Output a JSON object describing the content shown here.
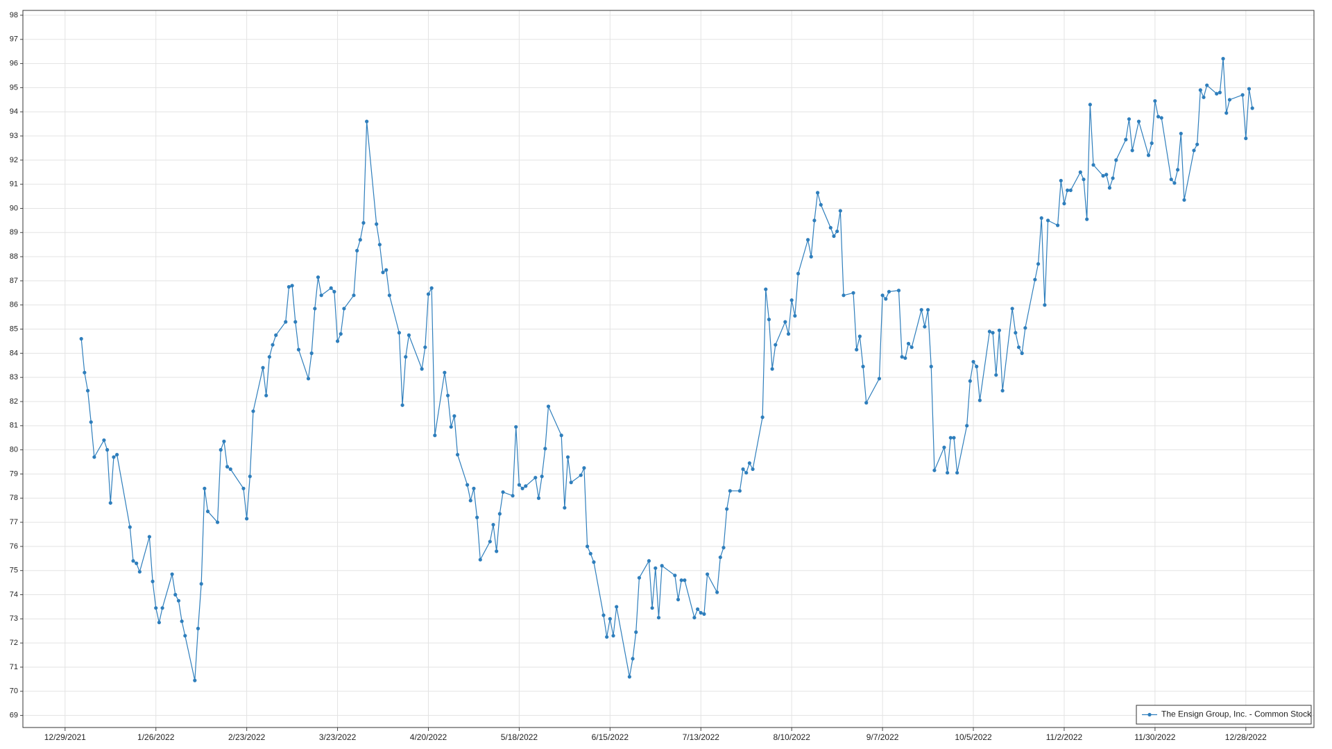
{
  "chart_data": {
    "type": "line",
    "x": [
      "1/3/2022",
      "1/4/2022",
      "1/5/2022",
      "1/6/2022",
      "1/7/2022",
      "1/10/2022",
      "1/11/2022",
      "1/12/2022",
      "1/13/2022",
      "1/14/2022",
      "1/18/2022",
      "1/19/2022",
      "1/20/2022",
      "1/21/2022",
      "1/24/2022",
      "1/25/2022",
      "1/26/2022",
      "1/27/2022",
      "1/28/2022",
      "1/31/2022",
      "2/1/2022",
      "2/2/2022",
      "2/3/2022",
      "2/4/2022",
      "2/7/2022",
      "2/8/2022",
      "2/9/2022",
      "2/10/2022",
      "2/11/2022",
      "2/14/2022",
      "2/15/2022",
      "2/16/2022",
      "2/17/2022",
      "2/18/2022",
      "2/22/2022",
      "2/23/2022",
      "2/24/2022",
      "2/25/2022",
      "2/28/2022",
      "3/1/2022",
      "3/2/2022",
      "3/3/2022",
      "3/4/2022",
      "3/7/2022",
      "3/8/2022",
      "3/9/2022",
      "3/10/2022",
      "3/11/2022",
      "3/14/2022",
      "3/15/2022",
      "3/16/2022",
      "3/17/2022",
      "3/18/2022",
      "3/21/2022",
      "3/22/2022",
      "3/23/2022",
      "3/24/2022",
      "3/25/2022",
      "3/28/2022",
      "3/29/2022",
      "3/30/2022",
      "3/31/2022",
      "4/1/2022",
      "4/4/2022",
      "4/5/2022",
      "4/6/2022",
      "4/7/2022",
      "4/8/2022",
      "4/11/2022",
      "4/12/2022",
      "4/13/2022",
      "4/14/2022",
      "4/18/2022",
      "4/19/2022",
      "4/20/2022",
      "4/21/2022",
      "4/22/2022",
      "4/25/2022",
      "4/26/2022",
      "4/27/2022",
      "4/28/2022",
      "4/29/2022",
      "5/2/2022",
      "5/3/2022",
      "5/4/2022",
      "5/5/2022",
      "5/6/2022",
      "5/9/2022",
      "5/10/2022",
      "5/11/2022",
      "5/12/2022",
      "5/13/2022",
      "5/16/2022",
      "5/17/2022",
      "5/18/2022",
      "5/19/2022",
      "5/20/2022",
      "5/23/2022",
      "5/24/2022",
      "5/25/2022",
      "5/26/2022",
      "5/27/2022",
      "5/31/2022",
      "6/1/2022",
      "6/2/2022",
      "6/3/2022",
      "6/6/2022",
      "6/7/2022",
      "6/8/2022",
      "6/9/2022",
      "6/10/2022",
      "6/13/2022",
      "6/14/2022",
      "6/15/2022",
      "6/16/2022",
      "6/17/2022",
      "6/21/2022",
      "6/22/2022",
      "6/23/2022",
      "6/24/2022",
      "6/27/2022",
      "6/28/2022",
      "6/29/2022",
      "6/30/2022",
      "7/1/2022",
      "7/5/2022",
      "7/6/2022",
      "7/7/2022",
      "7/8/2022",
      "7/11/2022",
      "7/12/2022",
      "7/13/2022",
      "7/14/2022",
      "7/15/2022",
      "7/18/2022",
      "7/19/2022",
      "7/20/2022",
      "7/21/2022",
      "7/22/2022",
      "7/25/2022",
      "7/26/2022",
      "7/27/2022",
      "7/28/2022",
      "7/29/2022",
      "8/1/2022",
      "8/2/2022",
      "8/3/2022",
      "8/4/2022",
      "8/5/2022",
      "8/8/2022",
      "8/9/2022",
      "8/10/2022",
      "8/11/2022",
      "8/12/2022",
      "8/15/2022",
      "8/16/2022",
      "8/17/2022",
      "8/18/2022",
      "8/19/2022",
      "8/22/2022",
      "8/23/2022",
      "8/24/2022",
      "8/25/2022",
      "8/26/2022",
      "8/29/2022",
      "8/30/2022",
      "8/31/2022",
      "9/1/2022",
      "9/2/2022",
      "9/6/2022",
      "9/7/2022",
      "9/8/2022",
      "9/9/2022",
      "9/12/2022",
      "9/13/2022",
      "9/14/2022",
      "9/15/2022",
      "9/16/2022",
      "9/19/2022",
      "9/20/2022",
      "9/21/2022",
      "9/22/2022",
      "9/23/2022",
      "9/26/2022",
      "9/27/2022",
      "9/28/2022",
      "9/29/2022",
      "9/30/2022",
      "10/3/2022",
      "10/4/2022",
      "10/5/2022",
      "10/6/2022",
      "10/7/2022",
      "10/10/2022",
      "10/11/2022",
      "10/12/2022",
      "10/13/2022",
      "10/14/2022",
      "10/17/2022",
      "10/18/2022",
      "10/19/2022",
      "10/20/2022",
      "10/21/2022",
      "10/24/2022",
      "10/25/2022",
      "10/26/2022",
      "10/27/2022",
      "10/28/2022",
      "10/31/2022",
      "11/1/2022",
      "11/2/2022",
      "11/3/2022",
      "11/4/2022",
      "11/7/2022",
      "11/8/2022",
      "11/9/2022",
      "11/10/2022",
      "11/11/2022",
      "11/14/2022",
      "11/15/2022",
      "11/16/2022",
      "11/17/2022",
      "11/18/2022",
      "11/21/2022",
      "11/22/2022",
      "11/23/2022",
      "11/25/2022",
      "11/28/2022",
      "11/29/2022",
      "11/30/2022",
      "12/1/2022",
      "12/2/2022",
      "12/5/2022",
      "12/6/2022",
      "12/7/2022",
      "12/8/2022",
      "12/9/2022",
      "12/12/2022",
      "12/13/2022",
      "12/14/2022",
      "12/15/2022",
      "12/16/2022",
      "12/19/2022",
      "12/20/2022",
      "12/21/2022",
      "12/22/2022",
      "12/23/2022",
      "12/27/2022",
      "12/28/2022",
      "12/29/2022",
      "12/30/2022"
    ],
    "series": [
      {
        "name": "The Ensign Group, Inc. - Common Stock",
        "color": "#2e7ebc",
        "values": [
          84.6,
          83.2,
          82.45,
          81.15,
          79.7,
          80.4,
          80.0,
          77.8,
          79.7,
          79.8,
          76.8,
          75.4,
          75.3,
          74.95,
          76.4,
          74.55,
          73.45,
          72.85,
          73.45,
          74.85,
          74.0,
          73.75,
          72.9,
          72.3,
          70.45,
          72.6,
          74.45,
          78.4,
          77.45,
          77.0,
          80.0,
          80.35,
          79.3,
          79.2,
          78.4,
          77.15,
          78.9,
          81.6,
          83.4,
          82.25,
          83.85,
          84.35,
          84.75,
          85.3,
          86.75,
          86.8,
          85.3,
          84.15,
          82.95,
          84.0,
          85.85,
          87.15,
          86.4,
          86.7,
          86.55,
          84.5,
          84.8,
          85.85,
          86.4,
          88.25,
          88.7,
          89.4,
          93.6,
          89.35,
          88.5,
          87.35,
          87.45,
          86.4,
          84.85,
          81.85,
          83.85,
          84.75,
          83.35,
          84.25,
          86.45,
          86.7,
          80.6,
          83.2,
          82.25,
          80.95,
          81.4,
          79.8,
          78.55,
          77.9,
          78.4,
          77.2,
          75.45,
          76.2,
          76.9,
          75.8,
          77.35,
          78.25,
          78.1,
          80.95,
          78.55,
          78.4,
          78.5,
          78.85,
          78.0,
          78.9,
          80.05,
          81.8,
          80.6,
          77.6,
          79.7,
          78.65,
          78.95,
          79.25,
          76.0,
          75.7,
          75.35,
          73.15,
          72.25,
          73.0,
          72.3,
          73.5,
          70.6,
          71.35,
          72.45,
          74.7,
          75.4,
          73.45,
          75.1,
          73.05,
          75.2,
          74.8,
          73.8,
          74.6,
          74.6,
          73.05,
          73.4,
          73.25,
          73.2,
          74.85,
          74.1,
          75.55,
          75.95,
          77.55,
          78.3,
          78.3,
          79.2,
          79.05,
          79.45,
          79.2,
          81.35,
          86.65,
          85.4,
          83.35,
          84.35,
          85.3,
          84.8,
          86.2,
          85.55,
          87.3,
          88.7,
          88.0,
          89.5,
          90.65,
          90.15,
          89.2,
          88.85,
          89.05,
          89.9,
          86.4,
          86.5,
          84.15,
          84.7,
          83.45,
          81.95,
          82.95,
          86.4,
          86.25,
          86.55,
          86.6,
          83.85,
          83.8,
          84.4,
          84.25,
          85.8,
          85.1,
          85.8,
          83.45,
          79.15,
          80.1,
          79.05,
          80.5,
          80.5,
          79.05,
          81.0,
          82.85,
          83.65,
          83.45,
          82.05,
          84.9,
          84.85,
          83.1,
          84.95,
          82.45,
          85.85,
          84.85,
          84.25,
          84.0,
          85.05,
          87.05,
          87.7,
          89.6,
          86.0,
          89.5,
          89.3,
          91.15,
          90.2,
          90.75,
          90.75,
          91.5,
          91.2,
          89.55,
          94.3,
          91.8,
          91.35,
          91.4,
          90.85,
          91.25,
          92.0,
          92.85,
          93.7,
          92.4,
          93.6,
          92.2,
          92.7,
          94.45,
          93.8,
          93.75,
          91.2,
          91.05,
          91.6,
          93.1,
          90.35,
          92.4,
          92.65,
          94.9,
          94.6,
          95.1,
          94.75,
          94.8,
          96.2,
          93.95,
          94.5,
          94.7,
          92.9,
          94.95,
          94.15
        ]
      }
    ],
    "xlim": [
      "12/16/2021",
      "1/18/2023"
    ],
    "xticks": [
      "12/29/2021",
      "1/26/2022",
      "2/23/2022",
      "3/23/2022",
      "4/20/2022",
      "5/18/2022",
      "6/15/2022",
      "7/13/2022",
      "8/10/2022",
      "9/7/2022",
      "10/5/2022",
      "11/2/2022",
      "11/30/2022",
      "12/28/2022"
    ],
    "ylim": [
      68.5,
      98.2
    ],
    "yticks": [
      69,
      70,
      71,
      72,
      73,
      74,
      75,
      76,
      77,
      78,
      79,
      80,
      81,
      82,
      83,
      84,
      85,
      86,
      87,
      88,
      89,
      90,
      91,
      92,
      93,
      94,
      95,
      96,
      97,
      98
    ],
    "grid": true,
    "legend": "lower right",
    "markers": true
  }
}
